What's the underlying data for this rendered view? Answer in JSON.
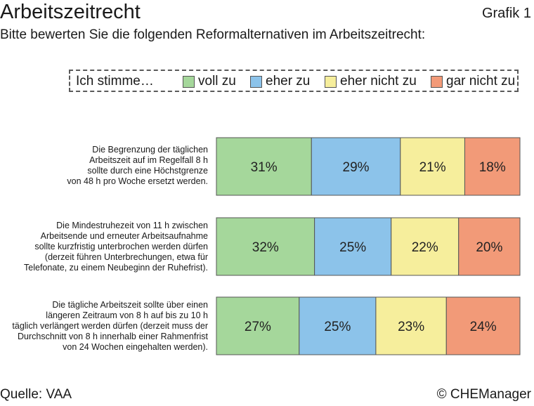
{
  "header": {
    "title": "Arbeitszeitrecht",
    "figure_label": "Grafik 1",
    "subtitle": "Bitte bewerten Sie die folgenden Reformalternativen im Arbeitszeitrecht:"
  },
  "legend": {
    "lead": "Ich stimme…"
  },
  "colors": {
    "voll zu": "#a5d79b",
    "eher zu": "#8cc3ea",
    "eher nicht zu": "#f6ee9c",
    "gar nicht zu": "#f29a78"
  },
  "chart_data": {
    "type": "bar",
    "orientation": "horizontal",
    "stacked": true,
    "categories": [
      "Die Begrenzung der täglichen Arbeitszeit auf im Regelfall 8 h sollte durch eine Höchstgrenze von 48 h pro Woche ersetzt werden.",
      "Die Mindestruhezeit von 11 h zwischen Arbeitsende und erneuter Arbeitsaufnahme sollte kurzfristig unterbrochen werden dürfen (derzeit führen Unterbrechungen, etwa für Telefonate, zu einem Neubeginn der Ruhefrist).",
      "Die tägliche Arbeitszeit sollte über einen längeren Zeitraum von 8 h auf bis zu 10 h täglich verlängert werden dürfen (derzeit muss der Durchschnitt von 8 h innerhalb einer Rahmenfrist von 24 Wochen eingehalten werden)."
    ],
    "category_lines": [
      [
        "Die Begrenzung der täglichen",
        "Arbeitszeit auf im Regelfall 8 h",
        "sollte durch eine Höchstgrenze",
        "von 48 h pro Woche ersetzt werden."
      ],
      [
        "Die Mindestruhezeit von 11 h zwischen",
        "Arbeitsende und erneuter Arbeitsaufnahme",
        "sollte kurzfristig unterbrochen werden dürfen",
        "(derzeit führen Unterbrechungen, etwa für",
        "Telefonate, zu einem Neubeginn der Ruhefrist)."
      ],
      [
        "Die tägliche Arbeitszeit sollte über einen",
        "längeren Zeitraum von 8 h auf bis zu 10 h",
        "täglich verlängert werden dürfen (derzeit muss der",
        "Durchschnitt von 8 h innerhalb einer Rahmenfrist",
        "von 24 Wochen eingehalten werden)."
      ]
    ],
    "series": [
      {
        "name": "voll zu",
        "values": [
          31,
          32,
          27
        ]
      },
      {
        "name": "eher zu",
        "values": [
          29,
          25,
          25
        ]
      },
      {
        "name": "eher nicht zu",
        "values": [
          21,
          22,
          23
        ]
      },
      {
        "name": "gar nicht zu",
        "values": [
          18,
          20,
          24
        ]
      }
    ],
    "unit": "%",
    "title": "Arbeitszeitrecht",
    "xlabel": "",
    "ylabel": "",
    "legend_position": "top"
  },
  "footer": {
    "source": "Quelle: VAA",
    "copyright": "© CHEManager"
  }
}
